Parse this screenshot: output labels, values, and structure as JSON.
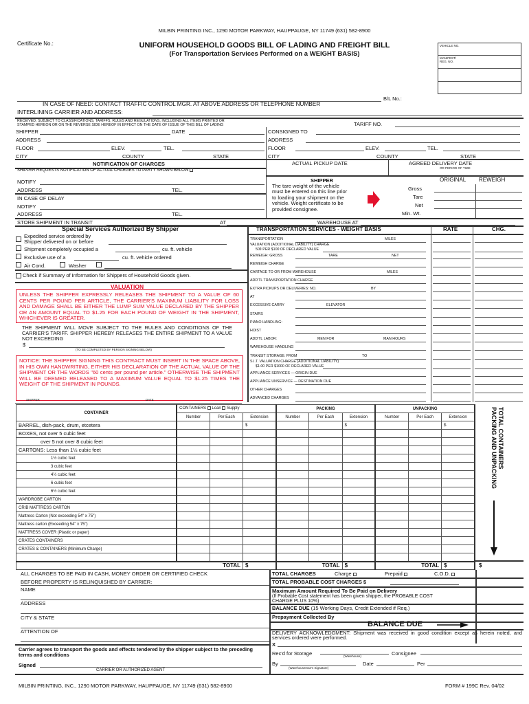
{
  "printer_header": "MILBIN PRINTING INC., 1290 MOTOR PARKWAY, HAUPPAUGE, NY 11749 (631) 582-8900",
  "certificate_label": "Certificate No.:",
  "title": "UNIFORM HOUSEHOLD GOODS BILL OF LADING AND FREIGHT BILL",
  "subtitle": "(For Transportation Services Performed on a WEIGHT BASIS)",
  "vehicle_box": {
    "vehicle": "VEHICLE NO.",
    "manifest": "MANIFEST/ REG. NO."
  },
  "bl_label": "B/L No.:",
  "in_case_of_need": "IN CASE OF NEED: CONTACT TRAFFIC CONTROL MGR. AT ABOVE ADDRESS OR TELEPHONE NUMBER",
  "interlining": "INTERLINING CARRIER AND  ADDRESS:",
  "received_line1": "RECEIVED, SUBJECT TO CLASSIFICATIONS, TARIFFS, RULES AND REGULATIONS, INCLUDING ALL ITEMS PRINTED OR",
  "received_line2": "STAMPED HEREON OR ON THE REVERSE SIDE HEREOF IN EFFECT ON THE DATE OF ISSUE OF THIS BILL OF LADING",
  "tariff": "TARIFF NO.",
  "shipper": {
    "shipper": "SHIPPER",
    "date": "DATE",
    "address": "ADDRESS",
    "floor": "FLOOR",
    "elev": "ELEV.",
    "tel": "TEL.",
    "city": "CITY",
    "county": "COUNTY",
    "state": "STATE"
  },
  "consignee": {
    "consigned": "CONSIGNED TO",
    "address": "ADDRESS",
    "floor": "FLOOR",
    "elev": "ELEV.",
    "tel": "TEL.",
    "city": "CITY",
    "county": "COUNTY",
    "state": "STATE"
  },
  "notification": {
    "title": "NOTIFICATION OF CHARGES",
    "request": "SHIPPER REQUESTS NOTIFICATION OF ACTUAL CHARGES TO PARTY SHOWN BELOW",
    "notify": "NOTIFY",
    "address": "ADDRESS",
    "tel": "TEL.",
    "delay": "IN CASE OF DELAY"
  },
  "dates": {
    "pickup": "ACTUAL PICKUP DATE",
    "delivery": "AGREED DELIVERY DATE",
    "period": "OR PERIOD OF TIME"
  },
  "weights": {
    "title": "SHIPPER",
    "text": [
      "The tare weight of the vehicle",
      "must be entered on this line prior",
      "to loading your shipment on the",
      "vehicle. Weight certificate to be",
      "provided consignee."
    ],
    "original": "ORIGINAL",
    "reweigh": "REWEIGH",
    "gross": "Gross",
    "tare": "Tare",
    "net": "Net",
    "min": "Min. Wt.",
    "arrow_color": "#e3122d"
  },
  "store": {
    "label": "STORE SHIPMENT IN TRANSIT",
    "at": "AT",
    "warehouse": "WAREHOUSE AT"
  },
  "special": {
    "title": "Special Services Authorized By Shipper",
    "expedited1": "Expedited service ordered by",
    "expedited2": "Shipper delivered on or before",
    "occupied": "Shipment completely occupied a",
    "cuft_vehicle": "cu. ft. vehicle",
    "exclusive": "Exclusive use of a",
    "cuft_ordered": "cu. ft. vehicle ordered",
    "aircond": "Air Cond.",
    "washer": "Washer",
    "summary": "Check if Summary of Information for Shippers of Household Goods given."
  },
  "valuation": {
    "title": "VALUATION",
    "box": "UNLESS THE SHIPPER EXPRESSLY RELEASES THE SHIPMENT TO A VALUE OF 60 CENTS PER POUND PER ARTICLE, THE CARRIER'S MAXIMUM LIABILITY FOR LOSS AND DAMAGE SHALL BE EITHER THE LUMP SUM VALUE DECLARED BY THE SHIPPER OR AN AMOUNT EQUAL TO $1.25 FOR EACH POUND OF WEIGHT IN THE SHIPMENT, WHICHEVER IS GREATER.",
    "release": "THE SHIPMENT WILL MOVE SUBJECT TO THE RULES AND CONDITIONS OF THE CARRIER'S TARIFF. SHIPPER HEREBY RELEASES THE ENTIRE SHIPMENT TO A VALUE NOT EXCEEDING",
    "dollar": "$",
    "complete": "(TO BE COMPLETED BY PERSON SIGNING BELOW)",
    "notice": "NOTICE: THE SHIPPER SIGNING THIS CONTRACT MUST INSERT IN THE SPACE ABOVE, IN HIS OWN HANDWRITING, EITHER HIS DECLARATION OF THE ACTUAL VALUE OF THE SHIPMENT OR THE WORDS \"60 cents per pound per article.\" OTHERWISE THE SHIPMENT WILL BE DEEMED RELEASED TO A MAXIMUM VALUE EQUAL TO $1.25 TIMES THE WEIGHT OF THE SHIPMENT IN POUNDS.",
    "shipper": "SHIPPER",
    "date": "DATE",
    "color": "#e3122d"
  },
  "services": {
    "title": "TRANSPORTATION SERVICES - WEIGHT BASIS",
    "rate": "RATE",
    "chg": "CHG.",
    "rows": [
      [
        "TRANSPORTATION",
        "MILES"
      ],
      [
        "VALUATION (ADDITIONAL LIABILITY) CHARGE|50¢ PER $100 OF DECLARED VALUE",
        ""
      ],
      [
        "REWEIGH: GROSS",
        "TARE",
        "NET"
      ],
      [
        "REWEIGH CHARGE"
      ],
      [
        "CARTAGE TO OR FROM WAREHOUSE",
        "MILES"
      ],
      [
        "ADD'TL TRANSPORTATION CHARGE"
      ],
      [
        "EXTRA PICKUPS OR DELIVERIES: NO.",
        "BY"
      ],
      [
        "AT"
      ],
      [
        "EXCESSIVE CARRY",
        "ELEVATOR"
      ],
      [
        "STAIRS"
      ],
      [
        "PIANO HANDLING:"
      ],
      [
        "HOIST"
      ],
      [
        "ADD'TL LABOR:",
        "MEN FOR",
        "MAN HOURS"
      ],
      [
        "WAREHOUSE HANDLING"
      ],
      [
        "TRANSIT STORAGE: FROM",
        "TO"
      ],
      [
        "S.I.T. VALUATION CHARGE (ADDITIONAL LIABILITY)|$1.00 PER $1000 OF DECLARED VALUE"
      ],
      [
        "APPLIANCE SERVICES — ORIGIN DUE"
      ],
      [
        "APPLIANCE UNSERVICE — DESTINATION DUE"
      ],
      [
        "OTHER CHARGES"
      ],
      [
        "ADVANCED CHARGES"
      ]
    ]
  },
  "containers": {
    "title": "CONTAINER",
    "containers": "CONTAINERS",
    "loan": "Loan",
    "supply": "Supply",
    "packing": "PACKING",
    "unpacking": "UNPACKING",
    "number": "Number",
    "per_each": "Per Each",
    "extension": "Extension",
    "dollar": "$",
    "total": "TOTAL",
    "side_title1": "TOTAL CONTAINERS",
    "side_title2": "PACKING AND UNPACKING",
    "rows": [
      "BARREL, dish-pack, drum, etcetera",
      "BOXES, not over 5 cubic feet",
      "over 5 not over 8 cubic feet",
      "CARTONS: Less than 1½ cubic feet",
      "1½ cubic feet",
      "3 cubic feet",
      "4½ cubic feet",
      "6 cubic feet",
      "6½ cubic feet",
      "WARDROBE CARTON",
      "CRIB MATTRESS CARTON",
      "Mattress Carton (Not exceeding 54\" x 75\")",
      "Mattress carton (Exceeding 54\" x 75\")",
      "MATTRESS COVER (Plastic or paper)",
      "CRATES  CONTAINERS",
      "CRATES & CONTAINERS (Minimum Charge)",
      ""
    ]
  },
  "payment": {
    "line1": "ALL CHARGES TO BE PAID IN CASH, MONEY ORDER OR CERTIFIED CHECK",
    "line2": "BEFORE PROPERTY IS RELINQUISHED BY CARRIER:",
    "name": "NAME",
    "address": "ADDRESS",
    "city": "CITY & STATE",
    "attention": "ATTENTION OF",
    "agree": "Carrier agrees to transport the goods and effects tendered by the shipper subject to the preceding terms and conditions",
    "signed": "Signed",
    "agent": "CARRIER OR AUTHORIZED AGENT"
  },
  "totals": {
    "total_charges": "TOTAL CHARGES",
    "charge": "Charge",
    "prepaid": "Prepaid",
    "cod": "C.O.D.",
    "probable": "TOTAL PROBABLE COST CHARGES $",
    "max": "Maximum Amount Required To Be Paid on Delivery",
    "max_note": "(If Probable Cost statement has been given shipper, the PROBABLE COST CHARGE PLUS 10%)",
    "balance_label": "BALANCE DUE",
    "balance_note": "(15 Working Days, Credit Extended if Req.)",
    "prepay": "Prepayment Collected By",
    "balance_due": "BALANCE DUE"
  },
  "delivery": {
    "ack": "DELIVERY ACKNOWLEDGMENT: Shipment was received in good condition except as herein noted, and services ordered were performed.",
    "x": "X",
    "storage": "Rec'd for Storage",
    "warehouse": "(Warehouse)",
    "consignee": "Consignee",
    "by": "By",
    "wsig": "(Warehouseman's Signature)",
    "date": "Date",
    "per": "Per"
  },
  "footer": {
    "left": "MILBIN PRINTING, INC., 1290 MOTOR PARKWAY, HAUPPAUGE, NY 11749 (631) 582-8900",
    "right": "FORM # 199C Rev. 04/02"
  }
}
